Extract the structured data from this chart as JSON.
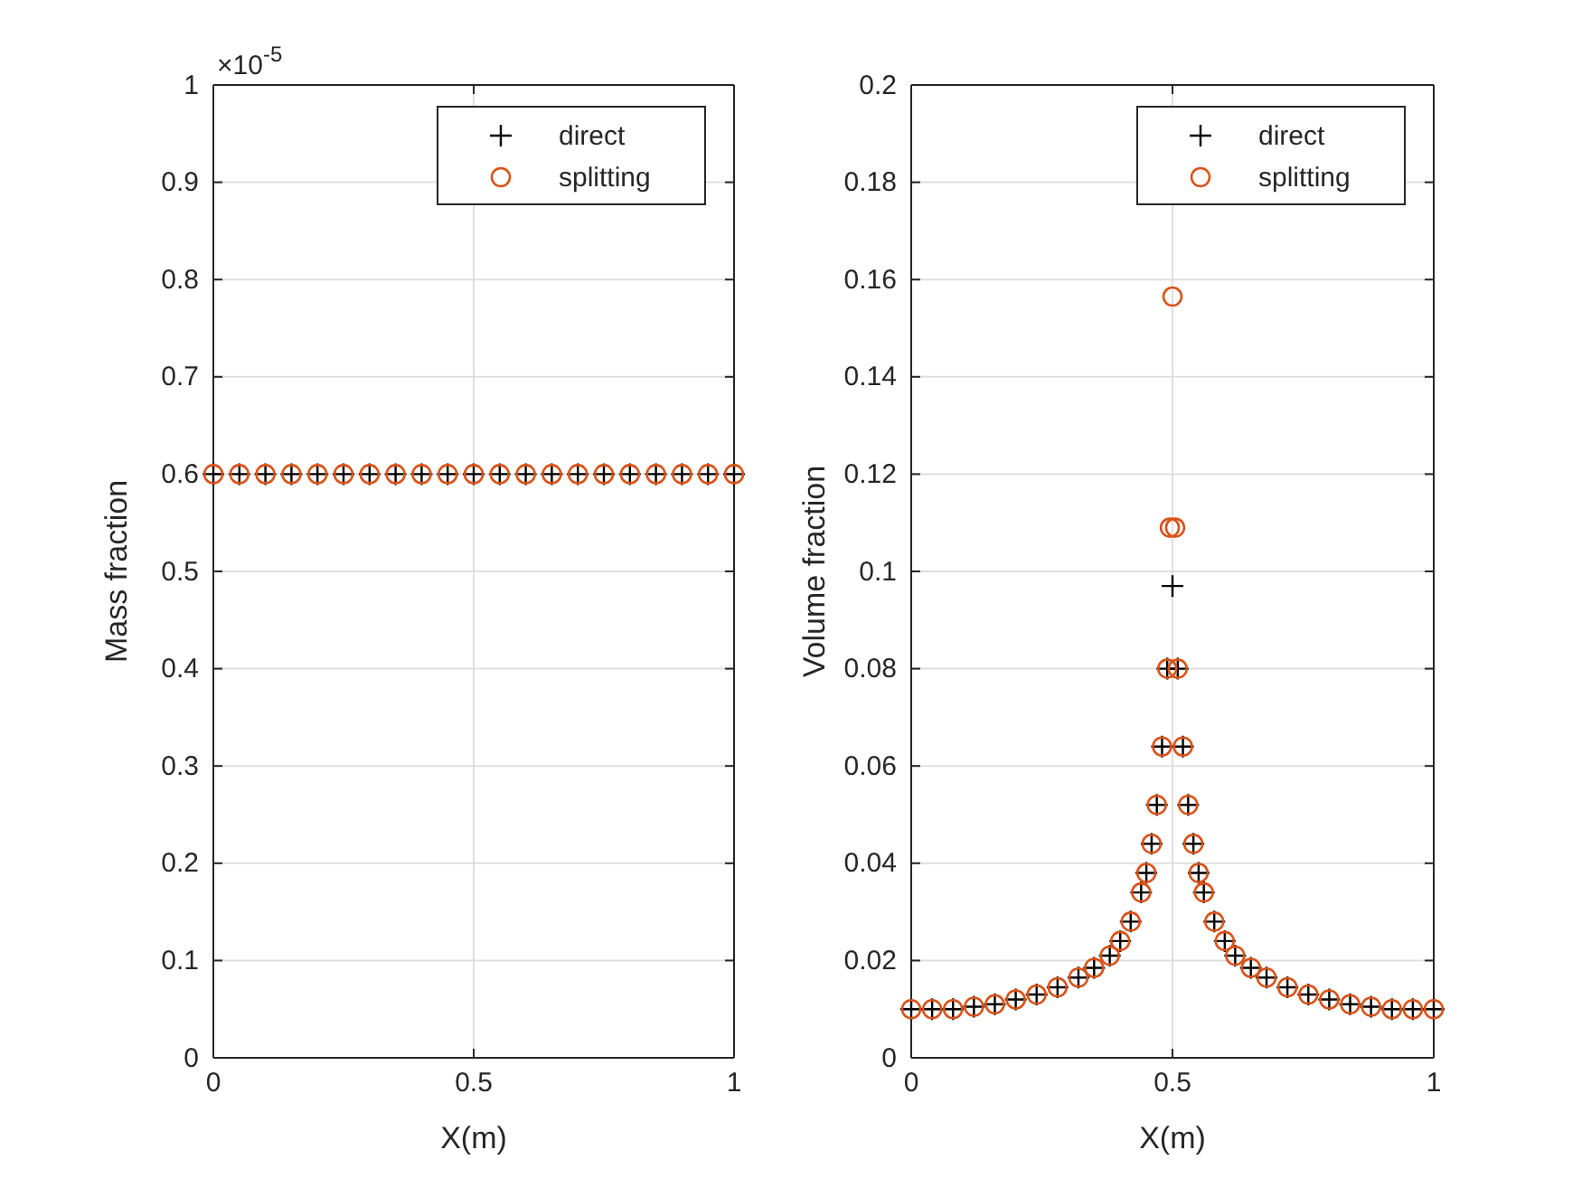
{
  "chart_data": [
    {
      "type": "scatter",
      "ylabel": "Mass fraction",
      "xlabel": "X(m)",
      "annotations": [
        "×10$^{-5}$"
      ],
      "xlim": [
        0,
        1
      ],
      "xticks": [
        0,
        0.5,
        1
      ],
      "ylim": [
        0,
        1
      ],
      "yticks": [
        0,
        0.1,
        0.2,
        0.3,
        0.4,
        0.5,
        0.6,
        0.7,
        0.8,
        0.9,
        1
      ],
      "grid": true,
      "legend": "top right",
      "x": [
        0,
        0.05,
        0.1,
        0.15,
        0.2,
        0.25,
        0.3,
        0.35,
        0.4,
        0.45,
        0.5,
        0.55,
        0.6,
        0.65,
        0.7,
        0.75,
        0.8,
        0.85,
        0.9,
        0.95,
        1
      ],
      "series": [
        {
          "name": "direct",
          "color": "#000000",
          "marker": "cross",
          "values": [
            0.6,
            0.6,
            0.6,
            0.6,
            0.6,
            0.6,
            0.6,
            0.6,
            0.6,
            0.6,
            0.6,
            0.6,
            0.6,
            0.6,
            0.6,
            0.6,
            0.6,
            0.6,
            0.6,
            0.6,
            0.6
          ]
        },
        {
          "name": "splitting",
          "color": "#d95319",
          "marker": "circle",
          "values": [
            0.6,
            0.6,
            0.6,
            0.6,
            0.6,
            0.6,
            0.6,
            0.6,
            0.6,
            0.6,
            0.6,
            0.6,
            0.6,
            0.6,
            0.6,
            0.6,
            0.6,
            0.6,
            0.6,
            0.6,
            0.6
          ]
        }
      ]
    },
    {
      "type": "scatter",
      "ylabel": "Volume fraction",
      "xlabel": "X(m)",
      "xlim": [
        0,
        1
      ],
      "xticks": [
        0,
        0.5,
        1
      ],
      "ylim": [
        0,
        0.2
      ],
      "yticks": [
        0,
        0.02,
        0.04,
        0.06,
        0.08,
        0.1,
        0.12,
        0.14,
        0.16,
        0.18,
        0.2
      ],
      "grid": true,
      "legend": "top right",
      "series": [
        {
          "name": "direct",
          "color": "#000000",
          "marker": "cross",
          "x": [
            0,
            0.04,
            0.08,
            0.12,
            0.16,
            0.2,
            0.24,
            0.28,
            0.32,
            0.35,
            0.38,
            0.4,
            0.42,
            0.44,
            0.45,
            0.46,
            0.47,
            0.48,
            0.49,
            0.5,
            0.51,
            0.52,
            0.53,
            0.54,
            0.55,
            0.56,
            0.58,
            0.6,
            0.62,
            0.65,
            0.68,
            0.72,
            0.76,
            0.8,
            0.84,
            0.88,
            0.92,
            0.96,
            1
          ],
          "values": [
            0.01,
            0.01,
            0.01,
            0.0105,
            0.011,
            0.012,
            0.013,
            0.0145,
            0.0165,
            0.0185,
            0.021,
            0.024,
            0.028,
            0.034,
            0.038,
            0.044,
            0.052,
            0.064,
            0.08,
            0.097,
            0.08,
            0.064,
            0.052,
            0.044,
            0.038,
            0.034,
            0.028,
            0.024,
            0.021,
            0.0185,
            0.0165,
            0.0145,
            0.013,
            0.012,
            0.011,
            0.0105,
            0.01,
            0.01,
            0.01
          ]
        },
        {
          "name": "splitting",
          "color": "#d95319",
          "marker": "circle",
          "x": [
            0,
            0.04,
            0.08,
            0.12,
            0.16,
            0.2,
            0.24,
            0.28,
            0.32,
            0.35,
            0.38,
            0.4,
            0.42,
            0.44,
            0.45,
            0.46,
            0.47,
            0.48,
            0.49,
            0.495,
            0.5,
            0.505,
            0.51,
            0.52,
            0.53,
            0.54,
            0.55,
            0.56,
            0.58,
            0.6,
            0.62,
            0.65,
            0.68,
            0.72,
            0.76,
            0.8,
            0.84,
            0.88,
            0.92,
            0.96,
            1
          ],
          "values": [
            0.01,
            0.01,
            0.01,
            0.0105,
            0.011,
            0.012,
            0.013,
            0.0145,
            0.0165,
            0.0185,
            0.021,
            0.024,
            0.028,
            0.034,
            0.038,
            0.044,
            0.052,
            0.064,
            0.08,
            0.109,
            0.1565,
            0.109,
            0.08,
            0.064,
            0.052,
            0.044,
            0.038,
            0.034,
            0.028,
            0.024,
            0.021,
            0.0185,
            0.0165,
            0.0145,
            0.013,
            0.012,
            0.011,
            0.0105,
            0.01,
            0.01,
            0.01
          ]
        }
      ]
    }
  ]
}
